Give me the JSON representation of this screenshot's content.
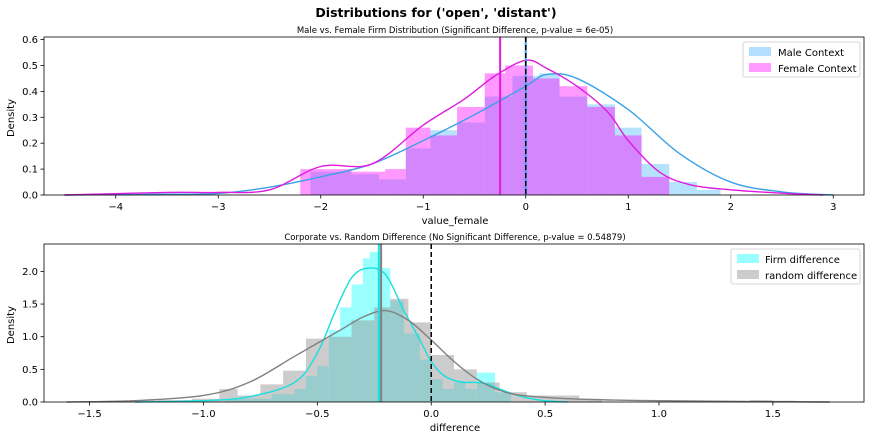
{
  "suptitle": "Distributions for ('open', 'distant')",
  "chart_data": [
    {
      "type": "histogram",
      "title": "Male vs. Female Firm Distribution (Significant Difference, p-value = 6e-05)",
      "xlabel": "value_female",
      "ylabel": "Density",
      "xlim": [
        -4.7,
        3.3
      ],
      "ylim": [
        0,
        0.61
      ],
      "xticks": [
        -4,
        -3,
        -2,
        -1,
        0,
        1,
        2,
        3
      ],
      "xtick_labels": [
        "−4",
        "−3",
        "−2",
        "−1",
        "0",
        "1",
        "2",
        "3"
      ],
      "yticks": [
        0.0,
        0.1,
        0.2,
        0.3,
        0.4,
        0.5,
        0.6
      ],
      "ytick_labels": [
        "0.0",
        "0.1",
        "0.2",
        "0.3",
        "0.4",
        "0.5",
        "0.6"
      ],
      "grid": false,
      "legend_position": "top-right",
      "series": [
        {
          "name": "Male Context",
          "color": "#87CEFA",
          "line_color": "#3aa0e8",
          "bins": [
            [
              -2.1,
              -1.7,
              0.09
            ],
            [
              -1.7,
              -1.43,
              0.08
            ],
            [
              -1.43,
              -1.17,
              0.06
            ],
            [
              -1.17,
              -0.93,
              0.18
            ],
            [
              -0.93,
              -0.67,
              0.25
            ],
            [
              -0.67,
              -0.4,
              0.28
            ],
            [
              -0.4,
              -0.13,
              0.38
            ],
            [
              -0.13,
              0.13,
              0.46
            ],
            [
              0.13,
              0.33,
              0.47
            ],
            [
              0.33,
              0.6,
              0.38
            ],
            [
              0.6,
              0.87,
              0.35
            ],
            [
              0.87,
              1.13,
              0.26
            ],
            [
              1.13,
              1.4,
              0.12
            ],
            [
              1.4,
              1.67,
              0.05
            ],
            [
              1.67,
              1.9,
              0.02
            ]
          ],
          "kde": [
            [
              -4.5,
              0.0
            ],
            [
              -3.5,
              0.003
            ],
            [
              -3.0,
              0.006
            ],
            [
              -2.5,
              0.03
            ],
            [
              -2.0,
              0.07
            ],
            [
              -1.5,
              0.12
            ],
            [
              -1.0,
              0.21
            ],
            [
              -0.5,
              0.31
            ],
            [
              0.0,
              0.42
            ],
            [
              0.2,
              0.465
            ],
            [
              0.5,
              0.45
            ],
            [
              1.0,
              0.33
            ],
            [
              1.5,
              0.16
            ],
            [
              2.0,
              0.05
            ],
            [
              2.5,
              0.012
            ],
            [
              3.0,
              0.0
            ]
          ],
          "mean_line": 0.0
        },
        {
          "name": "Female Context",
          "color": "#FF00FF",
          "line_color": "#E01BE0",
          "bins": [
            [
              -2.2,
              -1.7,
              0.1
            ],
            [
              -1.7,
              -1.37,
              0.09
            ],
            [
              -1.37,
              -1.17,
              0.1
            ],
            [
              -1.17,
              -0.93,
              0.26
            ],
            [
              -0.93,
              -0.67,
              0.23
            ],
            [
              -0.67,
              -0.4,
              0.34
            ],
            [
              -0.4,
              -0.2,
              0.47
            ],
            [
              -0.2,
              0.07,
              0.5
            ],
            [
              0.07,
              0.33,
              0.45
            ],
            [
              0.33,
              0.6,
              0.42
            ],
            [
              0.6,
              0.87,
              0.34
            ],
            [
              0.87,
              1.13,
              0.23
            ],
            [
              1.13,
              1.4,
              0.07
            ]
          ],
          "kde": [
            [
              -4.5,
              0.0
            ],
            [
              -3.5,
              0.01
            ],
            [
              -3.0,
              0.01
            ],
            [
              -2.5,
              0.02
            ],
            [
              -2.0,
              0.11
            ],
            [
              -1.5,
              0.12
            ],
            [
              -1.0,
              0.27
            ],
            [
              -0.6,
              0.37
            ],
            [
              -0.3,
              0.46
            ],
            [
              0.0,
              0.52
            ],
            [
              0.2,
              0.49
            ],
            [
              0.5,
              0.42
            ],
            [
              0.8,
              0.32
            ],
            [
              1.0,
              0.21
            ],
            [
              1.3,
              0.09
            ],
            [
              1.6,
              0.04
            ],
            [
              2.0,
              0.02
            ],
            [
              2.5,
              0.007
            ],
            [
              2.9,
              0.0
            ]
          ],
          "mean_line": -0.25
        }
      ],
      "reference_line": 0.0
    },
    {
      "type": "histogram",
      "title": "Corporate vs. Random Difference (No Significant Difference, p-value = 0.54879)",
      "xlabel": "difference",
      "ylabel": "Density",
      "xlim": [
        -1.7,
        1.9
      ],
      "ylim": [
        0,
        2.42
      ],
      "xticks": [
        -1.5,
        -1.0,
        -0.5,
        0.0,
        0.5,
        1.0,
        1.5
      ],
      "xtick_labels": [
        "−1.5",
        "−1.0",
        "−0.5",
        "0.0",
        "0.5",
        "1.0",
        "1.5"
      ],
      "yticks": [
        0.0,
        0.5,
        1.0,
        1.5,
        2.0
      ],
      "ytick_labels": [
        "0.0",
        "0.5",
        "1.0",
        "1.5",
        "2.0"
      ],
      "grid": false,
      "legend_position": "top-right",
      "series": [
        {
          "name": "Firm difference",
          "color": "#00FFFF",
          "line_color": "#17e0e0",
          "bins": [
            [
              -0.9,
              -0.85,
              0.05
            ],
            [
              -0.85,
              -0.7,
              0.05
            ],
            [
              -0.7,
              -0.6,
              0.12
            ],
            [
              -0.6,
              -0.55,
              0.2
            ],
            [
              -0.55,
              -0.5,
              0.4
            ],
            [
              -0.5,
              -0.45,
              0.55
            ],
            [
              -0.45,
              -0.4,
              1.1
            ],
            [
              -0.4,
              -0.35,
              1.45
            ],
            [
              -0.35,
              -0.3,
              1.8
            ],
            [
              -0.3,
              -0.27,
              2.2
            ],
            [
              -0.27,
              -0.22,
              2.3
            ],
            [
              -0.22,
              -0.18,
              2.05
            ],
            [
              -0.18,
              -0.12,
              1.55
            ],
            [
              -0.12,
              -0.05,
              1.05
            ],
            [
              -0.05,
              0.0,
              0.65
            ],
            [
              0.0,
              0.05,
              0.35
            ],
            [
              0.05,
              0.1,
              0.2
            ],
            [
              0.1,
              0.15,
              0.3
            ],
            [
              0.15,
              0.2,
              0.2
            ],
            [
              0.2,
              0.28,
              0.45
            ],
            [
              0.28,
              0.35,
              0.15
            ]
          ],
          "kde": [
            [
              -1.3,
              0.0
            ],
            [
              -1.0,
              0.02
            ],
            [
              -0.8,
              0.08
            ],
            [
              -0.6,
              0.3
            ],
            [
              -0.5,
              0.75
            ],
            [
              -0.42,
              1.4
            ],
            [
              -0.35,
              1.9
            ],
            [
              -0.28,
              2.05
            ],
            [
              -0.2,
              1.95
            ],
            [
              -0.12,
              1.4
            ],
            [
              -0.05,
              0.95
            ],
            [
              0.0,
              0.62
            ],
            [
              0.05,
              0.42
            ],
            [
              0.1,
              0.33
            ],
            [
              0.15,
              0.3
            ],
            [
              0.2,
              0.3
            ],
            [
              0.25,
              0.27
            ],
            [
              0.3,
              0.2
            ],
            [
              0.4,
              0.08
            ],
            [
              0.5,
              0.02
            ],
            [
              0.6,
              0.0
            ]
          ],
          "mean_line": -0.23
        },
        {
          "name": "random difference",
          "color": "#999999",
          "line_color": "#808080",
          "bins": [
            [
              -1.3,
              -1.2,
              0.02
            ],
            [
              -1.2,
              -1.05,
              0.03
            ],
            [
              -1.05,
              -0.93,
              0.05
            ],
            [
              -0.93,
              -0.85,
              0.2
            ],
            [
              -0.85,
              -0.75,
              0.1
            ],
            [
              -0.75,
              -0.65,
              0.27
            ],
            [
              -0.65,
              -0.55,
              0.48
            ],
            [
              -0.55,
              -0.45,
              0.97
            ],
            [
              -0.45,
              -0.35,
              1.0
            ],
            [
              -0.35,
              -0.25,
              1.25
            ],
            [
              -0.25,
              -0.18,
              1.45
            ],
            [
              -0.18,
              -0.1,
              1.58
            ],
            [
              -0.1,
              0.0,
              1.22
            ],
            [
              0.0,
              0.1,
              0.72
            ],
            [
              0.1,
              0.2,
              0.5
            ],
            [
              0.2,
              0.3,
              0.3
            ],
            [
              0.3,
              0.42,
              0.15
            ],
            [
              0.42,
              0.55,
              0.1
            ],
            [
              0.55,
              0.65,
              0.1
            ],
            [
              0.65,
              0.75,
              0.05
            ],
            [
              1.4,
              1.5,
              0.03
            ],
            [
              1.5,
              1.6,
              0.02
            ]
          ],
          "kde": [
            [
              -1.6,
              0.0
            ],
            [
              -1.3,
              0.02
            ],
            [
              -1.0,
              0.1
            ],
            [
              -0.8,
              0.3
            ],
            [
              -0.6,
              0.7
            ],
            [
              -0.4,
              1.1
            ],
            [
              -0.3,
              1.3
            ],
            [
              -0.2,
              1.4
            ],
            [
              -0.1,
              1.25
            ],
            [
              0.0,
              0.95
            ],
            [
              0.1,
              0.62
            ],
            [
              0.2,
              0.35
            ],
            [
              0.3,
              0.18
            ],
            [
              0.4,
              0.1
            ],
            [
              0.6,
              0.05
            ],
            [
              0.8,
              0.03
            ],
            [
              1.0,
              0.02
            ],
            [
              1.3,
              0.01
            ],
            [
              1.75,
              0.0
            ]
          ],
          "mean_line": -0.22
        }
      ],
      "reference_line": 0.0
    }
  ]
}
